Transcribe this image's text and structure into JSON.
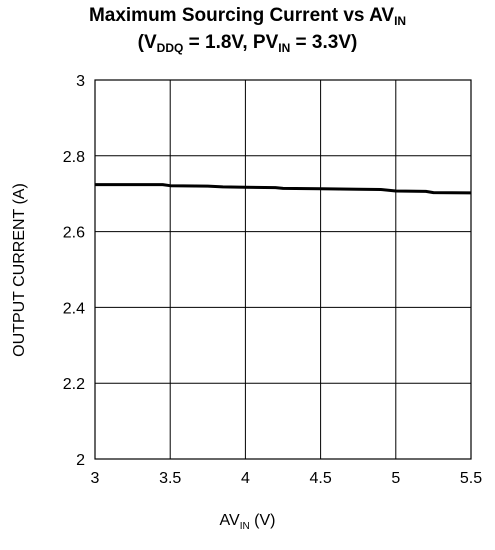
{
  "title": {
    "line1_main": "Maximum Sourcing Current vs AV",
    "line1_sub": "IN",
    "line2_a": "(V",
    "line2_a_sub": "DDQ",
    "line2_b": " = 1.8V, PV",
    "line2_b_sub": "IN",
    "line2_c": " = 3.3V)"
  },
  "axes": {
    "x_main": "AV",
    "x_sub": "IN",
    "x_unit": " (V)",
    "y_label": "OUTPUT CURRENT (A)"
  },
  "chart_data": {
    "type": "line",
    "title": "Maximum Sourcing Current vs AVIN (VDDQ = 1.8V, PVIN = 3.3V)",
    "xlabel": "AVIN (V)",
    "ylabel": "OUTPUT CURRENT (A)",
    "xlim": [
      3,
      5.5
    ],
    "ylim": [
      2,
      3
    ],
    "xticks": [
      3,
      3.5,
      4,
      4.5,
      5,
      5.5
    ],
    "xtick_labels": [
      "3",
      "3.5",
      "4",
      "4.5",
      "5",
      "5.5"
    ],
    "yticks": [
      2,
      2.2,
      2.4,
      2.6,
      2.8,
      3
    ],
    "ytick_labels": [
      "2",
      "2.2",
      "2.4",
      "2.6",
      "2.8",
      "3"
    ],
    "grid": true,
    "series": [
      {
        "x": [
          3.0,
          3.25,
          3.45,
          3.5,
          3.75,
          3.85,
          4.0,
          4.2,
          4.25,
          4.5,
          4.75,
          4.9,
          5.0,
          5.2,
          5.25,
          5.5
        ],
        "y": [
          2.724,
          2.724,
          2.724,
          2.721,
          2.72,
          2.718,
          2.717,
          2.716,
          2.714,
          2.713,
          2.712,
          2.711,
          2.707,
          2.706,
          2.703,
          2.702
        ]
      }
    ],
    "colors": {
      "line": "#000000",
      "grid": "#000000"
    }
  }
}
